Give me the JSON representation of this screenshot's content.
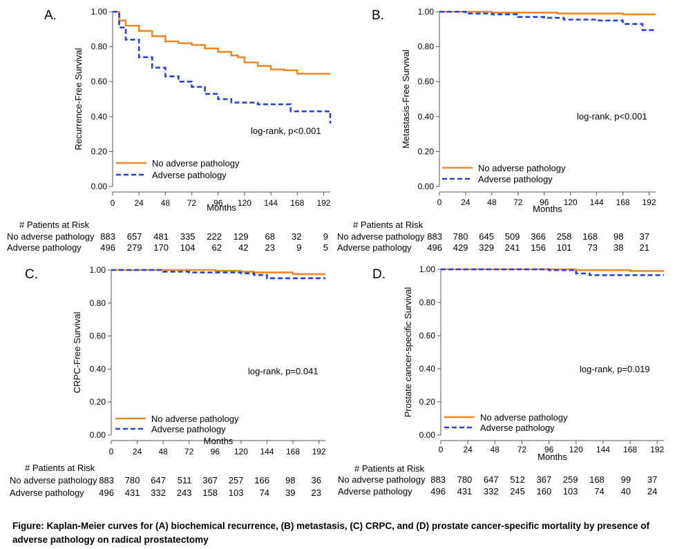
{
  "caption": "Figure: Kaplan-Meier curves for (A) biochemical recurrence, (B) metastasis, (C) CRPC, and (D) prostate cancer-specific mortality by presence of adverse pathology on radical prostatectomy",
  "colors": {
    "no_adverse": "#E9892A",
    "adverse": "#2B3FD6",
    "axis": "#555555"
  },
  "chart_data": [
    {
      "type": "line",
      "panel_label": "A.",
      "ylabel": "Recurrence-Free Survival",
      "xlabel": "Months",
      "xlim": [
        0,
        198
      ],
      "ylim": [
        0,
        1
      ],
      "xticks": [
        0,
        24,
        48,
        72,
        96,
        120,
        144,
        168,
        192
      ],
      "yticks": [
        "0.00",
        "0.20",
        "0.40",
        "0.60",
        "0.80",
        "1.00"
      ],
      "annotation": "log-rank, p<0.001",
      "series": [
        {
          "name": "No adverse pathology",
          "style": "solid",
          "x": [
            0,
            6,
            12,
            24,
            36,
            48,
            60,
            72,
            84,
            96,
            108,
            114,
            120,
            132,
            144,
            156,
            162,
            168,
            180,
            192,
            198
          ],
          "y": [
            1.0,
            0.95,
            0.92,
            0.89,
            0.86,
            0.83,
            0.82,
            0.81,
            0.79,
            0.77,
            0.75,
            0.74,
            0.71,
            0.69,
            0.67,
            0.665,
            0.665,
            0.645,
            0.645,
            0.645,
            0.645
          ]
        },
        {
          "name": "Adverse pathology",
          "style": "dashed",
          "x": [
            0,
            6,
            12,
            24,
            36,
            48,
            60,
            72,
            84,
            96,
            108,
            120,
            132,
            144,
            156,
            162,
            168,
            180,
            192,
            198,
            198
          ],
          "y": [
            1.0,
            0.91,
            0.84,
            0.74,
            0.68,
            0.63,
            0.6,
            0.57,
            0.53,
            0.5,
            0.48,
            0.48,
            0.47,
            0.47,
            0.47,
            0.43,
            0.43,
            0.43,
            0.43,
            0.43,
            0.36
          ]
        }
      ],
      "risk_table": {
        "title": "# Patients at Risk",
        "rows": [
          {
            "label": "No adverse pathology",
            "values": [
              "883",
              "657",
              "481",
              "335",
              "222",
              "129",
              "68",
              "32",
              "9"
            ]
          },
          {
            "label": "Adverse pathology",
            "values": [
              "496",
              "279",
              "170",
              "104",
              "62",
              "42",
              "23",
              "9",
              "5"
            ]
          }
        ]
      }
    },
    {
      "type": "line",
      "panel_label": "B.",
      "ylabel": "Metastasis-Free Survival",
      "xlabel": "Months",
      "xlim": [
        0,
        198
      ],
      "ylim": [
        0,
        1
      ],
      "xticks": [
        0,
        24,
        48,
        72,
        96,
        120,
        144,
        168,
        192
      ],
      "yticks": [
        "0.00",
        "0.20",
        "0.40",
        "0.60",
        "0.80",
        "1.00"
      ],
      "annotation": "log-rank, p<0.001",
      "series": [
        {
          "name": "No adverse pathology",
          "style": "solid",
          "x": [
            0,
            48,
            96,
            108,
            168,
            198
          ],
          "y": [
            1.0,
            0.995,
            0.995,
            0.99,
            0.985,
            0.985
          ]
        },
        {
          "name": "Adverse pathology",
          "style": "dashed",
          "x": [
            0,
            24,
            48,
            72,
            96,
            114,
            144,
            168,
            180,
            186,
            198
          ],
          "y": [
            1.0,
            0.99,
            0.985,
            0.97,
            0.965,
            0.955,
            0.95,
            0.93,
            0.93,
            0.895,
            0.895
          ]
        }
      ],
      "risk_table": {
        "title": "# Patients at Risk",
        "rows": [
          {
            "label": "No adverse pathology",
            "values": [
              "883",
              "780",
              "645",
              "509",
              "366",
              "258",
              "168",
              "98",
              "37"
            ]
          },
          {
            "label": "Adverse pathology",
            "values": [
              "496",
              "429",
              "329",
              "241",
              "156",
              "101",
              "73",
              "38",
              "21"
            ]
          }
        ]
      }
    },
    {
      "type": "line",
      "panel_label": "C.",
      "ylabel": "CRPC-Free Survival",
      "xlabel": "Months",
      "xlim": [
        0,
        198
      ],
      "ylim": [
        0,
        1
      ],
      "xticks": [
        0,
        24,
        48,
        72,
        96,
        120,
        144,
        168,
        192
      ],
      "yticks": [
        "0.00",
        "0.20",
        "0.40",
        "0.60",
        "0.80",
        "1.00"
      ],
      "annotation": "log-rank, p=0.041",
      "series": [
        {
          "name": "No adverse pathology",
          "style": "solid",
          "x": [
            0,
            96,
            120,
            132,
            144,
            168,
            198
          ],
          "y": [
            1.0,
            0.995,
            0.99,
            0.985,
            0.985,
            0.975,
            0.975
          ]
        },
        {
          "name": "Adverse pathology",
          "style": "dashed",
          "x": [
            0,
            48,
            72,
            120,
            132,
            144,
            198
          ],
          "y": [
            1.0,
            0.99,
            0.985,
            0.98,
            0.97,
            0.95,
            0.95
          ]
        }
      ],
      "risk_table": {
        "title": "# Patients at Risk",
        "rows": [
          {
            "label": "No adverse pathology",
            "values": [
              "883",
              "780",
              "647",
              "511",
              "367",
              "257",
              "166",
              "98",
              "36"
            ]
          },
          {
            "label": "Adverse pathology",
            "values": [
              "496",
              "431",
              "332",
              "243",
              "158",
              "103",
              "74",
              "39",
              "23"
            ]
          }
        ]
      }
    },
    {
      "type": "line",
      "panel_label": "D.",
      "ylabel": "Prostate cancer-specific Survival",
      "xlabel": "Months",
      "xlim": [
        0,
        198
      ],
      "ylim": [
        0,
        1
      ],
      "xticks": [
        0,
        24,
        48,
        72,
        96,
        120,
        144,
        168,
        192
      ],
      "yticks": [
        "0.00",
        "0.20",
        "0.40",
        "0.60",
        "0.80",
        "1.00"
      ],
      "annotation": "log-rank, p=0.019",
      "series": [
        {
          "name": "No adverse pathology",
          "style": "solid",
          "x": [
            0,
            120,
            168,
            198
          ],
          "y": [
            1.0,
            0.995,
            0.99,
            0.99
          ]
        },
        {
          "name": "Adverse pathology",
          "style": "dashed",
          "x": [
            0,
            96,
            120,
            132,
            198
          ],
          "y": [
            1.0,
            0.995,
            0.975,
            0.965,
            0.965
          ]
        }
      ],
      "risk_table": {
        "title": "# Patients at Risk",
        "rows": [
          {
            "label": "No adverse pathology",
            "values": [
              "883",
              "780",
              "647",
              "512",
              "367",
              "259",
              "168",
              "99",
              "37"
            ]
          },
          {
            "label": "Adverse pathology",
            "values": [
              "496",
              "431",
              "332",
              "245",
              "160",
              "103",
              "74",
              "40",
              "24"
            ]
          }
        ]
      }
    }
  ]
}
